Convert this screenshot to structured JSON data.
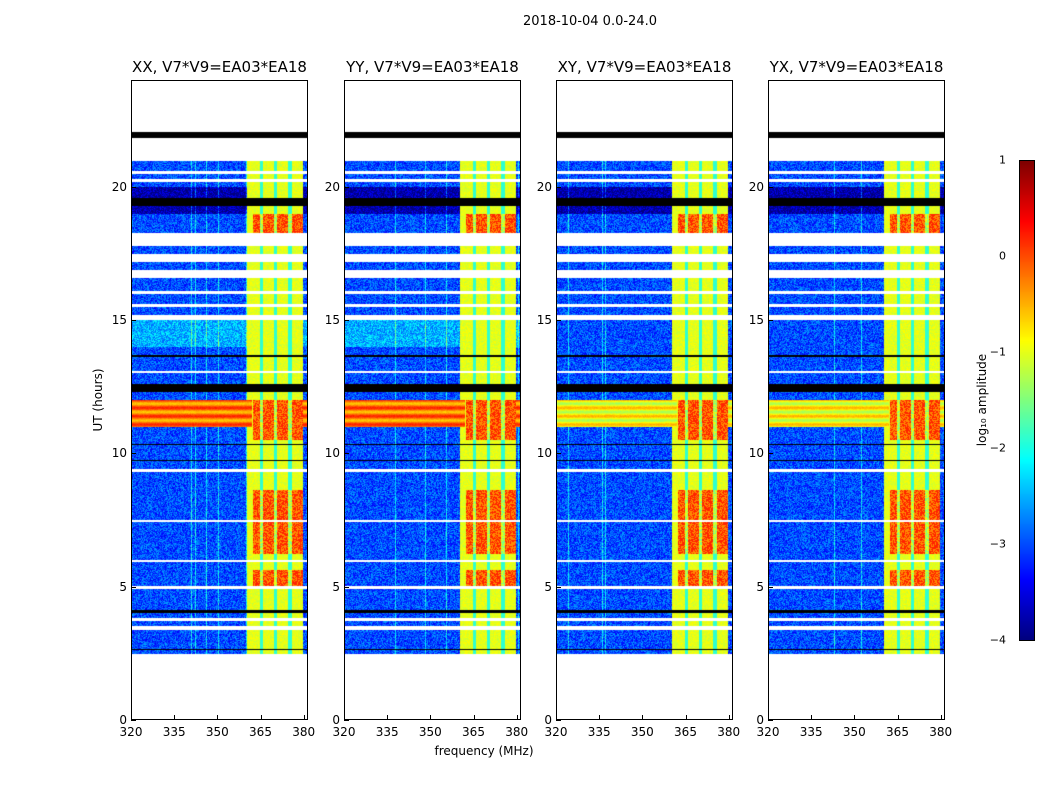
{
  "chart_data": {
    "type": "heatmap",
    "title": "2018-10-04 0.0-24.0",
    "panels": [
      {
        "title": "XX, V7*V9=EA03*EA18",
        "pol": "XX"
      },
      {
        "title": "YY, V7*V9=EA03*EA18",
        "pol": "YY"
      },
      {
        "title": "XY, V7*V9=EA03*EA18",
        "pol": "XY"
      },
      {
        "title": "YX, V7*V9=EA03*EA18",
        "pol": "YX"
      }
    ],
    "xlabel": "frequency (MHz)",
    "ylabel": "UT (hours)",
    "xlim": [
      320,
      381.5
    ],
    "ylim": [
      0,
      24
    ],
    "xticks": [
      "320",
      "335",
      "350",
      "365",
      "380"
    ],
    "xtick_values": [
      320,
      335,
      350,
      365,
      380
    ],
    "yticks": [
      "0",
      "5",
      "10",
      "15",
      "20"
    ],
    "ytick_values": [
      0,
      5,
      10,
      15,
      20
    ],
    "colorbar": {
      "label": "log₁₀ amplitude",
      "range": [
        -4,
        1
      ],
      "ticks": [
        "1",
        "0",
        "−1",
        "−2",
        "−3",
        "−4"
      ],
      "tick_values": [
        1,
        0,
        -1,
        -2,
        -3,
        -4
      ],
      "colormap": "jet"
    },
    "data_time_range_hours": [
      2.45,
      21.0
    ],
    "background_level": -3.0,
    "rfi_band_mhz": [
      360.5,
      380
    ],
    "rfi_band_level": -1.0,
    "rfi_channel_gaps_mhz": [
      365.5,
      370.5,
      375.5
    ],
    "strong_rfi_hours": [
      [
        5.0,
        5.6
      ],
      [
        6.2,
        8.6
      ],
      [
        10.5,
        12.0
      ],
      [
        18.3,
        19.0
      ]
    ],
    "broadband_rfi_hours": [
      11.0,
      12.0
    ],
    "flagged_white_hours": [
      [
        3.35,
        3.5
      ],
      [
        3.7,
        3.8
      ],
      [
        4.9,
        5.0
      ],
      [
        5.9,
        6.0
      ],
      [
        7.4,
        7.5
      ],
      [
        9.3,
        9.4
      ],
      [
        13.0,
        13.1
      ],
      [
        15.0,
        15.2
      ],
      [
        15.5,
        15.6
      ],
      [
        16.0,
        16.1
      ],
      [
        16.6,
        16.9
      ],
      [
        17.2,
        17.5
      ],
      [
        17.8,
        18.3
      ],
      [
        20.2,
        20.3
      ],
      [
        20.5,
        20.6
      ]
    ],
    "black_hours": [
      [
        2.6,
        2.65
      ],
      [
        4.0,
        4.1
      ],
      [
        9.7,
        9.75
      ],
      [
        10.3,
        10.35
      ],
      [
        12.3,
        12.6
      ],
      [
        13.6,
        13.7
      ],
      [
        19.3,
        19.6
      ],
      [
        21.85,
        22.1
      ]
    ]
  }
}
